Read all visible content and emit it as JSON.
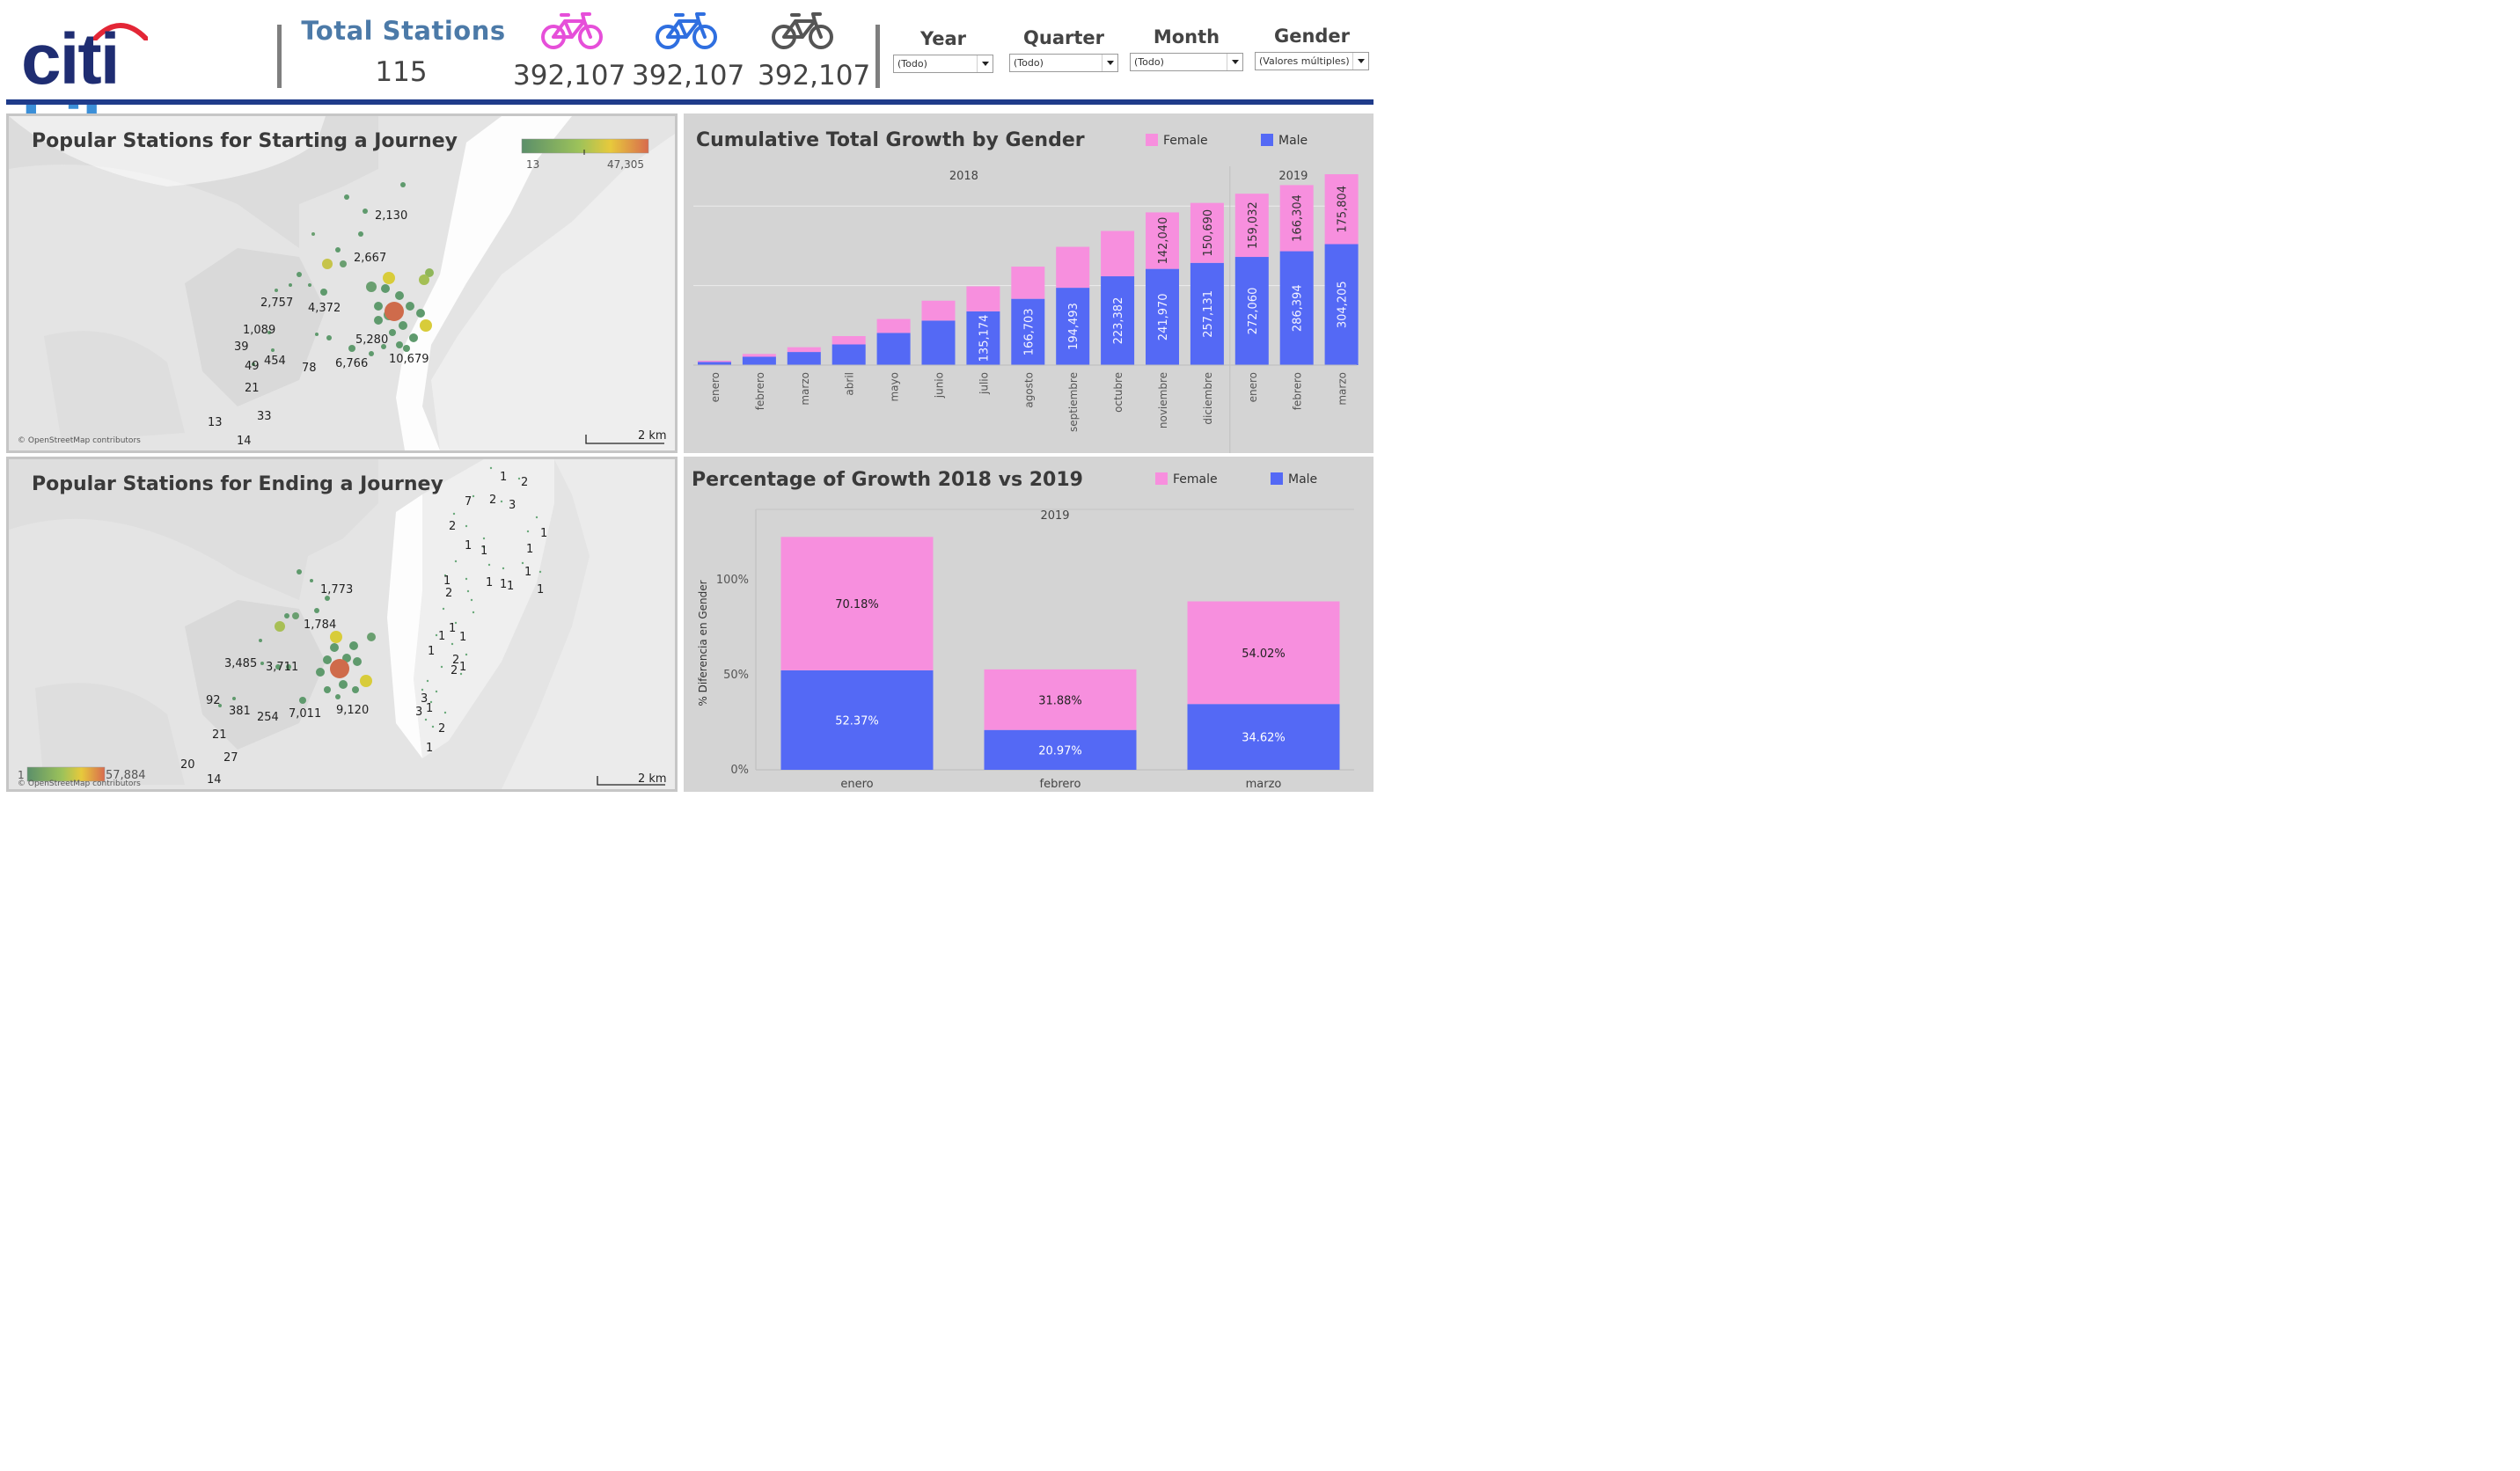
{
  "header": {
    "logo": {
      "part1": "citi",
      "part2": "bike"
    },
    "total_stations_label": "Total Stations",
    "total_stations_value": "115",
    "female_trips": "392,107",
    "male_trips": "392,107",
    "all_trips": "392,107",
    "icons": {
      "female": "bicycle-pink-icon",
      "male": "bicycle-blue-icon",
      "all": "bicycle-gray-icon"
    },
    "colors": {
      "female": "#e64fd9",
      "male": "#2f6fe0",
      "all": "#555555",
      "brand_navy": "#1f2d72",
      "brand_blue": "#3b8fd8",
      "arc_red": "#e32636",
      "title_blue": "#4c7aa8",
      "rule": "#1f3b8a"
    }
  },
  "filters": [
    {
      "label": "Year",
      "value": "(Todo)"
    },
    {
      "label": "Quarter",
      "value": "(Todo)"
    },
    {
      "label": "Month",
      "value": "(Todo)"
    },
    {
      "label": "Gender",
      "value": "(Valores múltiples)"
    }
  ],
  "map_start": {
    "title": "Popular Stations for Starting a Journey",
    "legend_min": "13",
    "legend_max": "47,305",
    "attribution": "© OpenStreetMap contributors",
    "scale": "2 km",
    "labels": [
      "2,130",
      "2,667",
      "2,757",
      "4,372",
      "1,089",
      "39",
      "49",
      "454",
      "78",
      "5,280",
      "6,766",
      "10,679",
      "21",
      "13",
      "33",
      "14"
    ]
  },
  "map_end": {
    "title": "Popular Stations for Ending a Journey",
    "legend_min": "1",
    "legend_max": "57,884",
    "attribution": "© OpenStreetMap contributors",
    "scale": "2 km",
    "labels": [
      "1,773",
      "1,784",
      "3,485",
      "3,711",
      "92",
      "381",
      "254",
      "7,011",
      "9,120",
      "21",
      "27",
      "20",
      "14",
      "1",
      "2",
      "2",
      "3",
      "7",
      "2",
      "1",
      "1",
      "1",
      "1",
      "1",
      "2",
      "1",
      "1",
      "1",
      "1",
      "1",
      "1",
      "1",
      "1",
      "1",
      "2",
      "2",
      "1",
      "3",
      "3",
      "1",
      "2",
      "1"
    ]
  },
  "chart_data": [
    {
      "type": "bar",
      "stacked": true,
      "title": "Cumulative Total Growth by Gender",
      "groups": [
        {
          "label": "2018",
          "categories": [
            "enero",
            "febrero",
            "marzo",
            "abril",
            "mayo",
            "junio",
            "julio",
            "agosto",
            "septiembre",
            "octubre",
            "noviembre",
            "diciembre"
          ]
        },
        {
          "label": "2019",
          "categories": [
            "enero",
            "febrero",
            "marzo"
          ]
        }
      ],
      "categories": [
        "enero",
        "febrero",
        "marzo",
        "abril",
        "mayo",
        "junio",
        "julio",
        "agosto",
        "septiembre",
        "octubre",
        "noviembre",
        "diciembre",
        "enero",
        "febrero",
        "marzo"
      ],
      "series": [
        {
          "name": "Male",
          "color": "#5469f5",
          "values": [
            8000,
            21000,
            33000,
            52000,
            81000,
            112000,
            135174,
            166703,
            194493,
            223382,
            241970,
            257131,
            272060,
            286394,
            304205
          ],
          "labels": [
            "",
            "",
            "",
            "",
            "",
            "",
            "135,174",
            "166,703",
            "194,493",
            "223,382",
            "241,970",
            "257,131",
            "272,060",
            "286,394",
            "304,205"
          ]
        },
        {
          "name": "Female",
          "color": "#f78fde",
          "values": [
            3000,
            7000,
            12000,
            21000,
            35000,
            50000,
            63000,
            81000,
            103000,
            114000,
            142040,
            150690,
            159032,
            166304,
            175804
          ],
          "labels": [
            "",
            "",
            "",
            "",
            "",
            "",
            "",
            "",
            "",
            "",
            "142,040",
            "150,690",
            "159,032",
            "166,304",
            "175,804"
          ]
        }
      ],
      "ylim": [
        0,
        500000
      ],
      "grid": true,
      "legend": "top-right"
    },
    {
      "type": "bar",
      "stacked": true,
      "title": "Percentage of Growth 2018 vs 2019",
      "group_label": "2019",
      "categories": [
        "enero",
        "febrero",
        "marzo"
      ],
      "ylabel": "% Diferencia en Gender",
      "yticks": [
        "0%",
        "50%",
        "100%"
      ],
      "ylim": [
        0,
        1.3
      ],
      "series": [
        {
          "name": "Male",
          "color": "#5469f5",
          "values": [
            0.5237,
            0.2097,
            0.3462
          ],
          "labels": [
            "52.37%",
            "20.97%",
            "34.62%"
          ]
        },
        {
          "name": "Female",
          "color": "#f78fde",
          "values": [
            0.7018,
            0.3188,
            0.5402
          ],
          "labels": [
            "70.18%",
            "31.88%",
            "54.02%"
          ]
        }
      ],
      "legend": "top-right"
    }
  ]
}
